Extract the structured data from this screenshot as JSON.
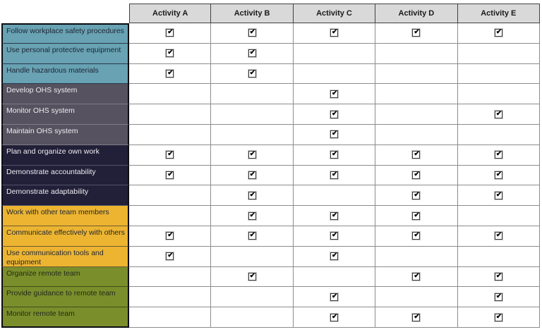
{
  "matrix": {
    "columns": [
      "Activity A",
      "Activity B",
      "Activity C",
      "Activity D",
      "Activity E"
    ],
    "header_bg": "#D9D9D9",
    "grid_line_color": "#8C8C8C",
    "outer_border_color": "#0c0c12",
    "checkbox_icon": "checked-checkbox",
    "groups": [
      {
        "name": "workplace-safety",
        "color": "#68A2B3",
        "text_color": "#1E2533",
        "divider_color": "rgba(16,22,40,0.75)"
      },
      {
        "name": "ohs-system",
        "color": "#56525F",
        "text_color": "#EDECF1",
        "divider_color": "rgba(200,200,215,0.35)"
      },
      {
        "name": "work-effectiveness",
        "color": "#221F38",
        "text_color": "#EDECF1",
        "divider_color": "rgba(200,200,215,0.3)"
      },
      {
        "name": "communication",
        "color": "#ECB431",
        "text_color": "#1E2533",
        "divider_color": "rgba(30,30,45,0.6)"
      },
      {
        "name": "remote-team",
        "color": "#7A8E2B",
        "text_color": "#212B1A",
        "divider_color": "rgba(25,35,15,0.6)"
      }
    ],
    "rows": [
      {
        "label": "Follow workplace safety procedures",
        "group": 0,
        "checks": [
          true,
          true,
          true,
          true,
          true
        ]
      },
      {
        "label": "Use personal protective equipment",
        "group": 0,
        "checks": [
          true,
          true,
          false,
          false,
          false
        ]
      },
      {
        "label": "Handle hazardous materials",
        "group": 0,
        "checks": [
          true,
          true,
          false,
          false,
          false
        ]
      },
      {
        "label": "Develop OHS system",
        "group": 1,
        "checks": [
          false,
          false,
          true,
          false,
          false
        ]
      },
      {
        "label": "Monitor OHS system",
        "group": 1,
        "checks": [
          false,
          false,
          true,
          false,
          true
        ]
      },
      {
        "label": "Maintain OHS system",
        "group": 1,
        "checks": [
          false,
          false,
          true,
          false,
          false
        ]
      },
      {
        "label": "Plan and organize own work",
        "group": 2,
        "checks": [
          true,
          true,
          true,
          true,
          true
        ]
      },
      {
        "label": "Demonstrate accountability",
        "group": 2,
        "checks": [
          true,
          true,
          true,
          true,
          true
        ]
      },
      {
        "label": "Demonstrate adaptability",
        "group": 2,
        "checks": [
          false,
          true,
          false,
          true,
          true
        ]
      },
      {
        "label": "Work with other team members",
        "group": 3,
        "checks": [
          false,
          true,
          true,
          true,
          false
        ]
      },
      {
        "label": "Communicate effectively with others",
        "group": 3,
        "checks": [
          true,
          true,
          true,
          true,
          true
        ]
      },
      {
        "label": "Use communication tools and equipment",
        "group": 3,
        "checks": [
          true,
          false,
          true,
          false,
          false
        ]
      },
      {
        "label": "Organize remote team",
        "group": 4,
        "checks": [
          false,
          true,
          false,
          true,
          true
        ]
      },
      {
        "label": "Provide guidance to remote team",
        "group": 4,
        "checks": [
          false,
          false,
          true,
          false,
          true
        ]
      },
      {
        "label": "Monitor remote team",
        "group": 4,
        "checks": [
          false,
          false,
          true,
          true,
          true
        ]
      }
    ]
  }
}
